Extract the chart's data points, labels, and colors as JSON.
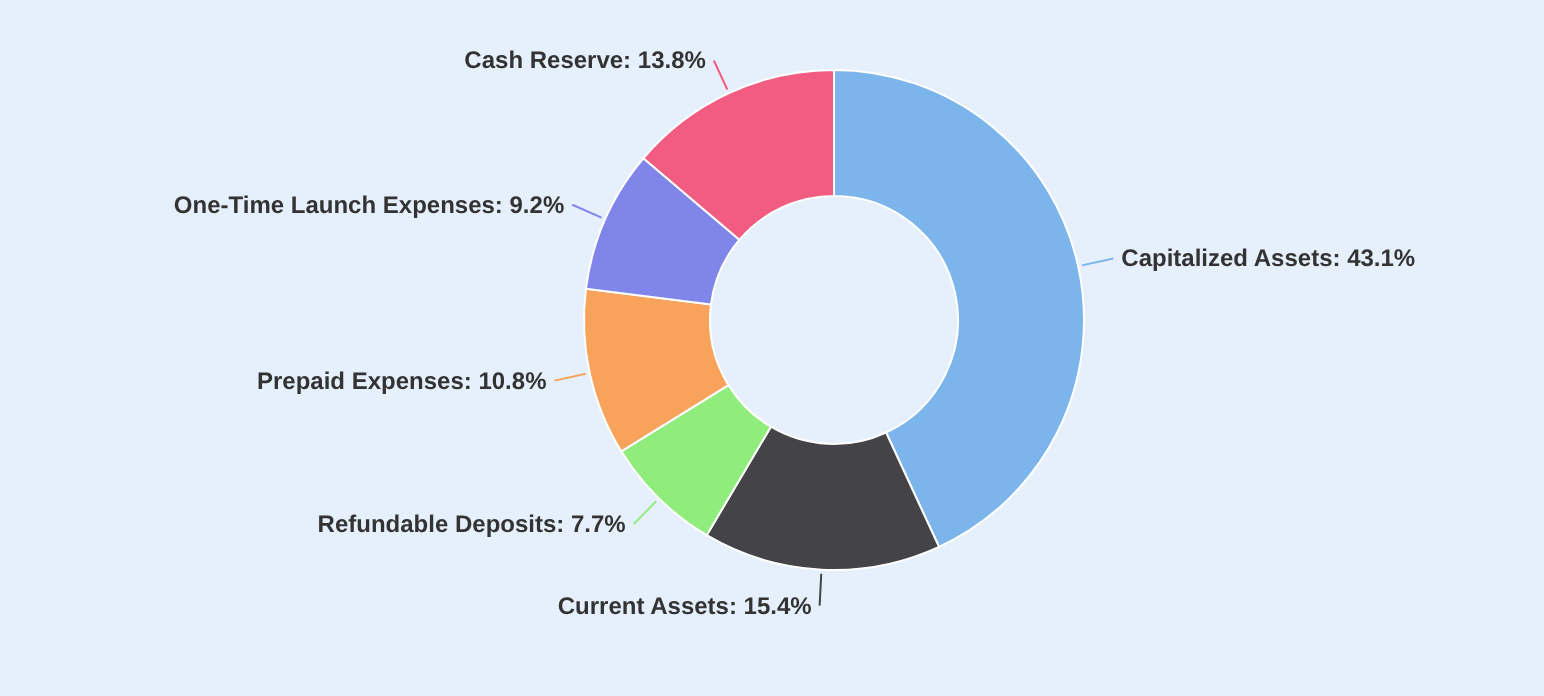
{
  "chart_data": {
    "type": "donut",
    "categories": [
      "Capitalized Assets",
      "Current Assets",
      "Refundable Deposits",
      "Prepaid Expenses",
      "One-Time Launch Expenses",
      "Cash Reserve"
    ],
    "values": [
      43.1,
      15.4,
      7.7,
      10.8,
      9.2,
      13.8
    ],
    "value_labels": [
      "43.1%",
      "15.4%",
      "7.7%",
      "10.8%",
      "9.2%",
      "13.8%"
    ],
    "colors": [
      "#7cb5ec",
      "#434348",
      "#90ed7d",
      "#f7a35c",
      "#8085e9",
      "#f15c80"
    ]
  }
}
